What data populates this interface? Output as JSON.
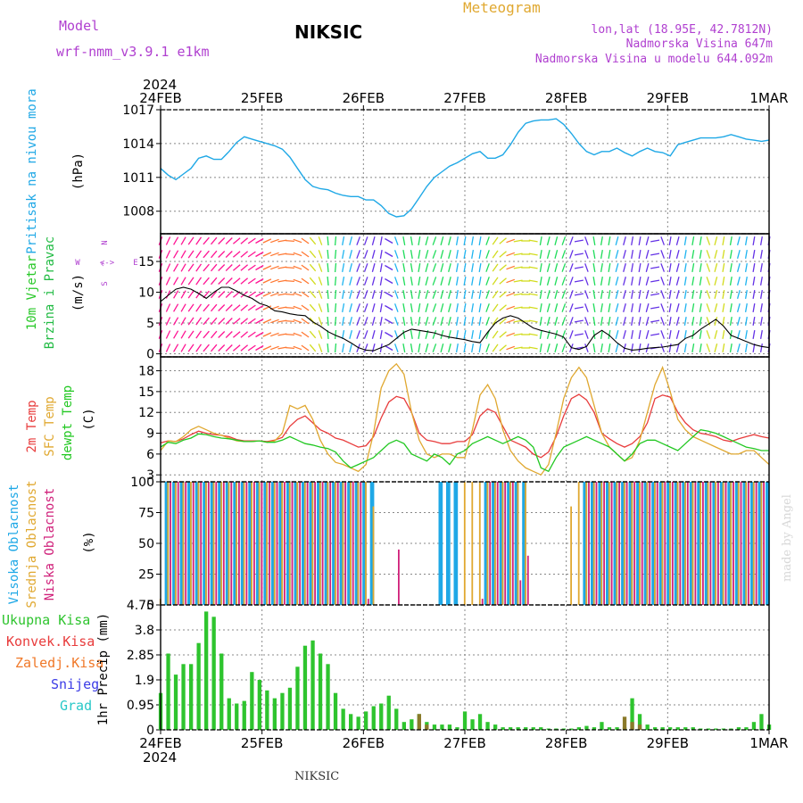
{
  "header": {
    "model_label": "Model",
    "model_name": "wrf-nmm_v3.9.1 e1km",
    "station": "NIKSIC",
    "product": "Meteogram",
    "coords": "lon,lat (18.95E, 42.7812N)",
    "elevation": "Nadmorska Visina 647m",
    "model_elevation": "Nadmorska Visina u modelu 644.092m"
  },
  "footer": {
    "station": "NIKSIC",
    "credit": "made by Angel"
  },
  "axis_time": {
    "year": "2024",
    "labels": [
      "24FEB",
      "25FEB",
      "26FEB",
      "27FEB",
      "28FEB",
      "29FEB",
      "1MAR"
    ]
  },
  "colors": {
    "pressure": "#1fa8e6",
    "wind_label": "#28c828",
    "wind_label2": "#22bb44",
    "temp": "#e83c3c",
    "sfc": "#e0a830",
    "dew": "#22c822",
    "cloud_high": "#1fa8e6",
    "cloud_mid": "#e0a830",
    "cloud_low": "#d0207a",
    "precip_total": "#2ec42e",
    "precip_conv": "#e83c3c",
    "precip_frz": "#f07828",
    "precip_snow": "#3c3ce6",
    "precip_grad": "#28c8c8",
    "purple": "#b040d0"
  },
  "chart_data": [
    {
      "type": "line",
      "title": "",
      "ylabel": "Pritisak na nivou mora",
      "unit": "(hPa)",
      "ylim": [
        1006,
        1017
      ],
      "yticks": [
        "1017",
        "1014",
        "1011",
        "1008"
      ],
      "x_start": "24FEB",
      "x_step_hours": 3,
      "series": [
        {
          "name": "Pritisak na nivou mora",
          "values": [
            1011.8,
            1011.2,
            1010.8,
            1011.3,
            1011.8,
            1012.7,
            1012.9,
            1012.6,
            1012.6,
            1013.3,
            1014.1,
            1014.6,
            1014.4,
            1014.2,
            1014.0,
            1013.8,
            1013.5,
            1012.8,
            1011.8,
            1010.8,
            1010.2,
            1010.0,
            1009.9,
            1009.6,
            1009.4,
            1009.3,
            1009.3,
            1009.0,
            1009.0,
            1008.5,
            1007.8,
            1007.5,
            1007.6,
            1008.2,
            1009.2,
            1010.2,
            1011.0,
            1011.5,
            1012.0,
            1012.3,
            1012.7,
            1013.1,
            1013.3,
            1012.7,
            1012.7,
            1013.0,
            1013.9,
            1015.0,
            1015.8,
            1016.0,
            1016.1,
            1016.1,
            1016.2,
            1015.7,
            1014.9,
            1014.0,
            1013.3,
            1013.0,
            1013.3,
            1013.3,
            1013.6,
            1013.2,
            1012.9,
            1013.3,
            1013.6,
            1013.3,
            1013.2,
            1012.9,
            1013.9,
            1014.1,
            1014.3,
            1014.5,
            1014.5,
            1014.5,
            1014.6,
            1014.8,
            1014.6,
            1014.4,
            1014.3,
            1014.2,
            1014.3
          ]
        }
      ]
    },
    {
      "type": "line",
      "title": "",
      "ylabel": "10m Vjetar Brzina i Pravac",
      "unit": "(m/s)",
      "ylim": [
        -0.5,
        19.5
      ],
      "yticks": [
        "15",
        "10",
        "5",
        "0"
      ],
      "compass": {
        "n": "N",
        "s": "S",
        "e": "E",
        "w": "W",
        "arrow_ns": "^",
        "arrow_ew": "<->"
      },
      "series": [
        {
          "name": "speed",
          "values": [
            8.5,
            9.5,
            10.5,
            10.8,
            10.5,
            9.8,
            9.0,
            10.0,
            10.8,
            10.8,
            10.2,
            9.5,
            9.0,
            8.2,
            7.8,
            7.0,
            6.8,
            6.5,
            6.3,
            6.2,
            5.2,
            4.5,
            3.6,
            3.0,
            2.5,
            1.8,
            1.0,
            0.6,
            0.5,
            1.0,
            1.5,
            2.5,
            3.5,
            4.0,
            3.8,
            3.6,
            3.4,
            3.0,
            2.7,
            2.5,
            2.3,
            2.0,
            1.8,
            3.5,
            5.0,
            5.8,
            6.2,
            5.8,
            5.0,
            4.2,
            3.8,
            3.5,
            3.2,
            2.7,
            1.0,
            0.7,
            1.2,
            3.0,
            3.8,
            3.0,
            1.8,
            0.9,
            0.6,
            0.7,
            0.9,
            1.0,
            1.1,
            1.3,
            1.5,
            2.5,
            3.0,
            4.0,
            4.8,
            5.6,
            4.5,
            3.0,
            2.5,
            2.0,
            1.5,
            1.2,
            1.0
          ]
        }
      ],
      "arrow_direction_deg": [
        200,
        205,
        210,
        210,
        215,
        215,
        220,
        220,
        225,
        225,
        230,
        230,
        235,
        240,
        245,
        250,
        260,
        275,
        290,
        305,
        320,
        340,
        355,
        5,
        10,
        15,
        20,
        20,
        15,
        10,
        120,
        160,
        170,
        170,
        10,
        15,
        20,
        15,
        15,
        10,
        10,
        10,
        10,
        200,
        215,
        230,
        250,
        260,
        270,
        280,
        10,
        15,
        15,
        20,
        20,
        80,
        160,
        170,
        10,
        10,
        15,
        15,
        10,
        10,
        15,
        80,
        160,
        10,
        15,
        10,
        10,
        10,
        160,
        15,
        10,
        10,
        15,
        10,
        10,
        10,
        10
      ]
    },
    {
      "type": "line",
      "title": "",
      "ylabel": "2m Temp",
      "ylabel2": "SFC Temp",
      "ylabel3": "dewpt Temp",
      "unit": "(C)",
      "ylim": [
        2,
        20
      ],
      "yticks": [
        "18",
        "15",
        "12",
        "9",
        "6",
        "3"
      ],
      "series": [
        {
          "name": "2m Temp",
          "values": [
            7.6,
            7.9,
            7.8,
            8.2,
            8.8,
            9.3,
            9.0,
            8.8,
            8.7,
            8.5,
            8.1,
            7.9,
            7.9,
            7.9,
            7.8,
            8.0,
            8.4,
            10.0,
            11.0,
            11.5,
            10.5,
            9.5,
            9.0,
            8.3,
            8.0,
            7.5,
            7.0,
            7.2,
            8.5,
            11.2,
            13.5,
            14.3,
            14.0,
            12.0,
            9.0,
            8.0,
            7.8,
            7.5,
            7.5,
            7.8,
            7.8,
            8.8,
            11.5,
            12.5,
            12.0,
            10.0,
            8.0,
            7.5,
            7.0,
            6.0,
            5.5,
            6.3,
            8.5,
            11.5,
            14.0,
            14.6,
            13.8,
            12.0,
            9.0,
            8.2,
            7.5,
            7.0,
            7.5,
            8.5,
            10.5,
            14.0,
            14.5,
            14.2,
            12.0,
            10.5,
            9.5,
            9.0,
            8.8,
            8.5,
            8.0,
            7.8,
            8.2,
            8.5,
            8.8,
            8.5,
            8.3
          ]
        },
        {
          "name": "SFC Temp",
          "values": [
            6.5,
            7.9,
            7.8,
            8.5,
            9.5,
            10.0,
            9.5,
            9.0,
            8.7,
            8.3,
            7.9,
            7.8,
            7.8,
            7.9,
            7.7,
            7.9,
            9.0,
            13.0,
            12.5,
            13.0,
            11.0,
            8.0,
            6.0,
            4.8,
            4.5,
            4.0,
            3.5,
            4.5,
            9.0,
            15.5,
            18.0,
            19.0,
            17.5,
            12.0,
            8.0,
            6.0,
            5.5,
            6.0,
            6.0,
            5.5,
            5.5,
            9.5,
            14.5,
            16.0,
            14.0,
            9.5,
            6.5,
            5.0,
            4.0,
            3.5,
            3.0,
            4.5,
            9.0,
            14.0,
            17.0,
            18.5,
            17.0,
            13.0,
            9.0,
            7.0,
            6.0,
            5.0,
            5.5,
            8.0,
            12.0,
            16.0,
            18.5,
            15.0,
            11.0,
            9.5,
            8.5,
            8.0,
            7.5,
            7.0,
            6.5,
            6.0,
            6.0,
            6.5,
            6.5,
            5.5,
            4.5
          ]
        },
        {
          "name": "dewpt Temp",
          "values": [
            7.0,
            7.7,
            7.5,
            8.0,
            8.3,
            8.9,
            8.8,
            8.5,
            8.3,
            8.2,
            8.0,
            7.8,
            7.8,
            7.9,
            7.7,
            7.7,
            8.0,
            8.5,
            8.0,
            7.5,
            7.3,
            7.0,
            6.8,
            6.3,
            5.0,
            4.0,
            4.5,
            5.0,
            5.5,
            6.5,
            7.5,
            8.0,
            7.5,
            6.0,
            5.5,
            5.0,
            6.0,
            5.5,
            4.5,
            6.0,
            6.5,
            7.5,
            8.0,
            8.5,
            8.0,
            7.5,
            8.0,
            8.5,
            8.0,
            7.0,
            4.0,
            3.5,
            5.5,
            7.0,
            7.5,
            8.0,
            8.5,
            8.0,
            7.5,
            7.0,
            6.0,
            5.0,
            6.0,
            7.5,
            8.0,
            8.0,
            7.5,
            7.0,
            6.5,
            7.5,
            8.5,
            9.5,
            9.3,
            9.0,
            8.5,
            8.0,
            7.5,
            7.0,
            6.8,
            6.5,
            6.5
          ]
        }
      ]
    },
    {
      "type": "bar",
      "title": "",
      "ylabel": "Visoka Oblacnost",
      "ylabel2": "Srednja Oblacnost",
      "ylabel3": "Niska Oblacnost",
      "unit": "(%)",
      "ylim": [
        0,
        100
      ],
      "yticks": [
        "100",
        "75",
        "50",
        "25",
        "0"
      ],
      "series": [
        {
          "name": "Visoka Oblacnost",
          "values": [
            0,
            100,
            100,
            100,
            100,
            100,
            100,
            100,
            100,
            100,
            100,
            100,
            100,
            100,
            100,
            100,
            100,
            100,
            100,
            100,
            100,
            100,
            100,
            100,
            100,
            100,
            100,
            100,
            100,
            0,
            0,
            0,
            0,
            0,
            0,
            0,
            0,
            100,
            100,
            100,
            0,
            0,
            0,
            100,
            100,
            100,
            100,
            100,
            100,
            0,
            0,
            0,
            0,
            0,
            0,
            0,
            100,
            100,
            100,
            100,
            100,
            100,
            100,
            100,
            100,
            100,
            100,
            100,
            100,
            100,
            100,
            100,
            100,
            100,
            100,
            100,
            100,
            100,
            100,
            100,
            100
          ]
        },
        {
          "name": "Srednja Oblacnost",
          "values": [
            5,
            100,
            100,
            100,
            100,
            100,
            100,
            100,
            100,
            100,
            100,
            100,
            100,
            100,
            100,
            100,
            100,
            100,
            100,
            100,
            100,
            100,
            100,
            100,
            100,
            100,
            100,
            100,
            80,
            0,
            0,
            0,
            0,
            0,
            0,
            0,
            0,
            0,
            0,
            0,
            100,
            100,
            100,
            100,
            100,
            100,
            100,
            100,
            100,
            0,
            0,
            0,
            0,
            0,
            80,
            100,
            100,
            100,
            100,
            100,
            100,
            100,
            100,
            100,
            100,
            100,
            100,
            100,
            100,
            100,
            100,
            100,
            100,
            100,
            100,
            100,
            100,
            100,
            100,
            100,
            0
          ]
        },
        {
          "name": "Niska Oblacnost",
          "values": [
            0,
            100,
            100,
            100,
            100,
            100,
            100,
            100,
            100,
            100,
            100,
            100,
            100,
            100,
            100,
            100,
            100,
            100,
            100,
            100,
            100,
            100,
            100,
            100,
            100,
            100,
            100,
            5,
            0,
            0,
            0,
            45,
            0,
            0,
            0,
            0,
            0,
            0,
            0,
            0,
            0,
            0,
            5,
            100,
            100,
            100,
            100,
            20,
            40,
            0,
            0,
            0,
            0,
            0,
            0,
            0,
            100,
            100,
            100,
            100,
            100,
            100,
            100,
            100,
            100,
            100,
            100,
            100,
            100,
            100,
            100,
            100,
            100,
            100,
            100,
            100,
            100,
            100,
            100,
            100,
            0
          ]
        }
      ]
    },
    {
      "type": "bar",
      "title": "",
      "ylabel": "1hr Precip (mm)",
      "ylim": [
        0,
        4.75
      ],
      "yticks": [
        "4.75",
        "3.8",
        "2.85",
        "1.9",
        "0.95",
        "0"
      ],
      "legend": [
        "Ukupna Kisa",
        "Konvek.Kisa",
        "Zaledj.Kisa",
        "Snijeg",
        "Grad"
      ],
      "series": [
        {
          "name": "Ukupna Kisa",
          "values": [
            1.4,
            2.9,
            2.1,
            2.5,
            2.5,
            3.3,
            4.5,
            4.3,
            2.9,
            1.2,
            1.0,
            1.1,
            2.2,
            1.9,
            1.5,
            1.2,
            1.4,
            1.6,
            2.4,
            3.2,
            3.4,
            2.9,
            2.5,
            1.4,
            0.8,
            0.6,
            0.5,
            0.7,
            0.9,
            1.0,
            1.3,
            0.8,
            0.3,
            0.4,
            0.6,
            0.3,
            0.2,
            0.2,
            0.2,
            0.1,
            0.7,
            0.4,
            0.6,
            0.3,
            0.2,
            0.1,
            0.1,
            0.1,
            0.1,
            0.1,
            0.1,
            0.05,
            0.05,
            0.05,
            0.05,
            0.1,
            0.15,
            0.1,
            0.3,
            0.1,
            0.1,
            0.1,
            1.2,
            0.6,
            0.2,
            0.1,
            0.1,
            0.1,
            0.1,
            0.1,
            0.1,
            0.05,
            0.05,
            0.05,
            0.05,
            0.05,
            0.1,
            0.1,
            0.3,
            0.6,
            0.2
          ]
        },
        {
          "name": "Konvek.Kisa",
          "values": [
            0,
            0,
            0,
            0,
            0,
            0,
            0,
            0,
            0,
            0,
            0,
            0,
            0,
            0,
            0,
            0,
            0,
            0,
            0,
            0,
            0,
            0,
            0,
            0,
            0,
            0,
            0,
            0,
            0,
            0,
            0,
            0,
            0,
            0,
            0.6,
            0.2,
            0,
            0,
            0,
            0,
            0,
            0,
            0,
            0,
            0,
            0,
            0,
            0,
            0,
            0,
            0,
            0,
            0,
            0,
            0,
            0,
            0,
            0,
            0,
            0,
            0,
            0.5,
            0.3,
            0.2,
            0,
            0,
            0,
            0,
            0,
            0,
            0,
            0,
            0,
            0,
            0,
            0,
            0,
            0,
            0,
            0,
            0
          ]
        }
      ]
    }
  ]
}
